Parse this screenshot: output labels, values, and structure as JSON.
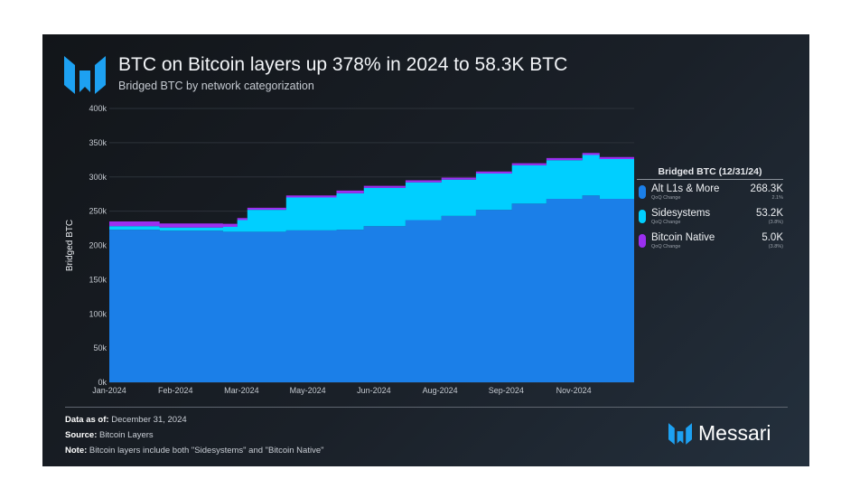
{
  "header": {
    "title": "BTC on Bitcoin layers up 378% in 2024 to 58.3K BTC",
    "subtitle": "Bridged BTC by network categorization"
  },
  "legend": {
    "title": "Bridged BTC (12/31/24)",
    "items": [
      {
        "name": "Alt L1s & More",
        "value": "268.3K",
        "sub": "QoQ Change",
        "change": "2.1%",
        "color": "#1b7fe8"
      },
      {
        "name": "Sidesystems",
        "value": "53.2K",
        "sub": "QoQ Change",
        "change": "(3.8%)",
        "color": "#00cfff"
      },
      {
        "name": "Bitcoin Native",
        "value": "5.0K",
        "sub": "QoQ Change",
        "change": "(3.8%)",
        "color": "#9b2ff0"
      }
    ]
  },
  "footer": {
    "data_label": "Data as of:",
    "data_value": "December 31, 2024",
    "source_label": "Source:",
    "source_value": "Bitcoin Layers",
    "note_label": "Note:",
    "note_value": "Bitcoin layers include both \"Sidesystems\" and \"Bitcoin Native\""
  },
  "brand": {
    "name": "Messari",
    "logo_text": "M"
  },
  "chart_data": {
    "type": "area",
    "stacked": true,
    "title": "BTC on Bitcoin layers up 378% in 2024 to 58.3K BTC",
    "ylabel": "Bridged BTC",
    "xlabel": "",
    "ylim": [
      0,
      400
    ],
    "y_unit": "k",
    "yticks": [
      "0k",
      "50k",
      "100k",
      "150k",
      "200k",
      "250k",
      "300k",
      "350k",
      "400k"
    ],
    "x_day_of_year": [
      0,
      35,
      79,
      89,
      96,
      123,
      158,
      177,
      206,
      231,
      255,
      280,
      304,
      329,
      341,
      365
    ],
    "xticks": [
      {
        "label": "Jan-2024",
        "day": 0
      },
      {
        "label": "Feb-2024",
        "day": 46
      },
      {
        "label": "Mar-2024",
        "day": 92
      },
      {
        "label": "May-2024",
        "day": 138
      },
      {
        "label": "Jun-2024",
        "day": 184
      },
      {
        "label": "Aug-2024",
        "day": 230
      },
      {
        "label": "Sep-2024",
        "day": 276
      },
      {
        "label": "Nov-2024",
        "day": 323
      }
    ],
    "series": [
      {
        "name": "Alt L1s & More",
        "color": "#1b7fe8",
        "values": [
          223,
          221.5,
          220,
          220,
          220,
          222,
          223,
          228,
          237,
          243,
          252,
          261,
          268,
          273,
          268,
          268.3
        ]
      },
      {
        "name": "Sidesystems",
        "color": "#00cfff",
        "values": [
          5,
          4.5,
          7,
          17,
          32,
          48,
          53,
          56,
          55,
          53,
          53,
          56,
          56.5,
          59,
          58,
          53.2
        ]
      },
      {
        "name": "Bitcoin Native",
        "color": "#9b2ff0",
        "values": [
          7,
          6,
          4.6,
          3,
          3,
          3,
          4,
          3,
          3,
          3,
          3,
          3,
          3,
          3,
          3,
          5.0
        ]
      }
    ],
    "grid": true,
    "legend_position": "right"
  }
}
